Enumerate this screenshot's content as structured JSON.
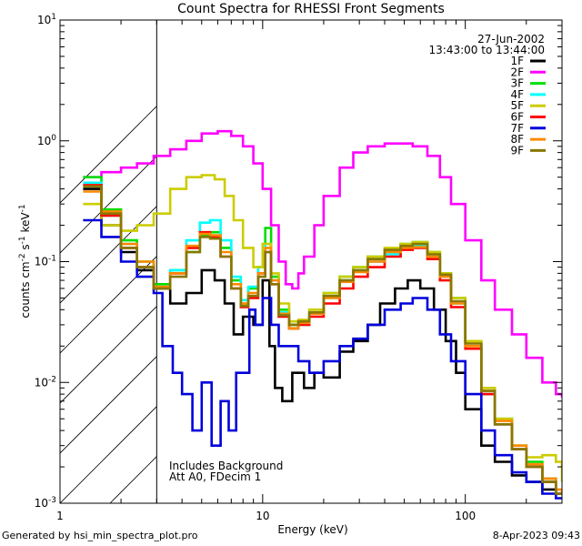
{
  "chart_data": {
    "type": "line",
    "title": "Count Spectra for RHESSI Front Segments",
    "xlabel": "Energy (keV)",
    "ylabel": "counts cm-2 s-1 keV-1",
    "xscale": "log",
    "yscale": "log",
    "xlim": [
      1,
      300
    ],
    "ylim": [
      0.001,
      10
    ],
    "x_ticks": [
      {
        "value": 1,
        "label": "1"
      },
      {
        "value": 10,
        "label": "10"
      },
      {
        "value": 100,
        "label": "100"
      }
    ],
    "y_ticks": [
      {
        "value": 0.001,
        "base": "10",
        "exp": "-3"
      },
      {
        "value": 0.01,
        "base": "10",
        "exp": "-2"
      },
      {
        "value": 0.1,
        "base": "10",
        "exp": "-1"
      },
      {
        "value": 1,
        "base": "10",
        "exp": "0"
      },
      {
        "value": 10,
        "base": "10",
        "exp": "1"
      }
    ],
    "hatched_region_kev": [
      1,
      3
    ],
    "date": "27-Jun-2002",
    "time_range": "13:43:00 to 13:44:00",
    "annotation_lines": [
      "Includes Background",
      "Att A0, FDecim 1"
    ],
    "series": [
      {
        "name": "1F",
        "color": "#000000",
        "x": [
          1.3,
          1.6,
          2.0,
          2.4,
          2.9,
          3.5,
          4.2,
          5.0,
          5.8,
          6.5,
          7.2,
          8.0,
          9.0,
          10.0,
          10.8,
          11.5,
          12.5,
          14.0,
          16.0,
          18.0,
          20.0,
          24.0,
          28.0,
          33.0,
          38.0,
          45.0,
          52.0,
          60.0,
          70.0,
          80.0,
          90.0,
          100.0,
          120.0,
          140.0,
          170.0,
          200.0,
          240.0,
          280.0,
          300.0
        ],
        "y": [
          0.4,
          0.2,
          0.12,
          0.085,
          0.06,
          0.045,
          0.055,
          0.085,
          0.07,
          0.045,
          0.025,
          0.035,
          0.03,
          0.07,
          0.02,
          0.009,
          0.007,
          0.012,
          0.009,
          0.012,
          0.011,
          0.018,
          0.022,
          0.03,
          0.045,
          0.06,
          0.07,
          0.06,
          0.04,
          0.022,
          0.012,
          0.006,
          0.003,
          0.0022,
          0.0017,
          0.0015,
          0.0013,
          0.0012,
          0.0012
        ]
      },
      {
        "name": "2F",
        "color": "#ff00ff",
        "x": [
          1.3,
          1.6,
          2.0,
          2.4,
          2.9,
          3.5,
          4.2,
          5.0,
          6.0,
          7.0,
          8.0,
          9.0,
          10.0,
          11.0,
          12.0,
          13.0,
          14.0,
          15.0,
          16.0,
          18.0,
          20.0,
          24.0,
          28.0,
          33.0,
          40.0,
          48.0,
          55.0,
          65.0,
          75.0,
          85.0,
          100.0,
          120.0,
          140.0,
          170.0,
          200.0,
          240.0,
          280.0,
          300.0
        ],
        "y": [
          0.5,
          0.55,
          0.6,
          0.65,
          0.75,
          0.85,
          1.0,
          1.15,
          1.2,
          1.1,
          0.9,
          0.65,
          0.4,
          0.2,
          0.1,
          0.065,
          0.06,
          0.08,
          0.11,
          0.2,
          0.35,
          0.6,
          0.8,
          0.9,
          0.95,
          0.95,
          0.9,
          0.75,
          0.5,
          0.3,
          0.15,
          0.07,
          0.04,
          0.025,
          0.016,
          0.01,
          0.008,
          0.0075
        ]
      },
      {
        "name": "3F",
        "color": "#00dd00",
        "x": [
          1.3,
          1.6,
          2.0,
          2.4,
          2.9,
          3.5,
          4.2,
          4.9,
          5.5,
          6.2,
          7.0,
          7.8,
          8.5,
          9.5,
          10.3,
          11.0,
          12.0,
          13.5,
          15.0,
          17.0,
          20.0,
          24.0,
          28.0,
          33.0,
          40.0,
          48.0,
          55.0,
          65.0,
          75.0,
          85.0,
          100.0,
          120.0,
          140.0,
          170.0,
          200.0,
          240.0,
          280.0,
          300.0
        ],
        "y": [
          0.5,
          0.27,
          0.15,
          0.1,
          0.065,
          0.085,
          0.12,
          0.165,
          0.175,
          0.13,
          0.07,
          0.045,
          0.06,
          0.09,
          0.19,
          0.075,
          0.04,
          0.03,
          0.032,
          0.04,
          0.055,
          0.075,
          0.09,
          0.11,
          0.125,
          0.14,
          0.145,
          0.12,
          0.08,
          0.05,
          0.022,
          0.009,
          0.005,
          0.003,
          0.0022,
          0.0016,
          0.0012,
          0.0012
        ]
      },
      {
        "name": "4F",
        "color": "#00ffff",
        "x": [
          1.3,
          1.6,
          2.0,
          2.4,
          2.9,
          3.5,
          4.2,
          4.9,
          5.5,
          6.2,
          7.0,
          7.8,
          8.5,
          9.5,
          10.3,
          11.0,
          12.0,
          13.5,
          15.0,
          17.0,
          20.0,
          24.0,
          28.0,
          33.0,
          40.0,
          48.0,
          55.0,
          65.0,
          75.0,
          85.0,
          100.0,
          120.0,
          140.0,
          170.0,
          200.0,
          240.0,
          280.0,
          300.0
        ],
        "y": [
          0.45,
          0.24,
          0.14,
          0.09,
          0.06,
          0.085,
          0.15,
          0.21,
          0.22,
          0.15,
          0.075,
          0.048,
          0.062,
          0.09,
          0.14,
          0.07,
          0.038,
          0.028,
          0.03,
          0.038,
          0.05,
          0.07,
          0.085,
          0.1,
          0.115,
          0.13,
          0.135,
          0.11,
          0.075,
          0.045,
          0.02,
          0.008,
          0.0045,
          0.0028,
          0.002,
          0.0015,
          0.0012,
          0.0012
        ]
      },
      {
        "name": "5F",
        "color": "#cccc00",
        "x": [
          1.3,
          1.6,
          2.0,
          2.4,
          2.9,
          3.5,
          4.2,
          5.0,
          5.8,
          6.5,
          7.2,
          8.0,
          9.0,
          10.0,
          11.0,
          12.0,
          13.5,
          15.0,
          17.0,
          20.0,
          24.0,
          28.0,
          33.0,
          40.0,
          48.0,
          55.0,
          65.0,
          75.0,
          85.0,
          100.0,
          120.0,
          140.0,
          170.0,
          200.0,
          240.0,
          280.0,
          300.0
        ],
        "y": [
          0.3,
          0.2,
          0.18,
          0.2,
          0.25,
          0.4,
          0.5,
          0.52,
          0.48,
          0.35,
          0.22,
          0.13,
          0.09,
          0.14,
          0.08,
          0.045,
          0.032,
          0.033,
          0.04,
          0.055,
          0.075,
          0.09,
          0.11,
          0.13,
          0.14,
          0.145,
          0.12,
          0.08,
          0.05,
          0.022,
          0.009,
          0.005,
          0.003,
          0.0024,
          0.0025,
          0.0022,
          0.0015
        ]
      },
      {
        "name": "6F",
        "color": "#ff0000",
        "x": [
          1.3,
          1.6,
          2.0,
          2.4,
          2.9,
          3.5,
          4.2,
          4.9,
          5.5,
          6.2,
          7.0,
          7.8,
          8.5,
          9.5,
          10.3,
          11.0,
          12.0,
          13.5,
          15.0,
          17.0,
          20.0,
          24.0,
          28.0,
          33.0,
          40.0,
          48.0,
          55.0,
          65.0,
          75.0,
          85.0,
          100.0,
          120.0,
          140.0,
          170.0,
          200.0,
          240.0,
          280.0,
          300.0
        ],
        "y": [
          0.43,
          0.24,
          0.13,
          0.09,
          0.06,
          0.08,
          0.13,
          0.175,
          0.16,
          0.11,
          0.06,
          0.042,
          0.05,
          0.08,
          0.12,
          0.065,
          0.035,
          0.028,
          0.03,
          0.035,
          0.045,
          0.06,
          0.075,
          0.09,
          0.11,
          0.125,
          0.13,
          0.105,
          0.07,
          0.042,
          0.019,
          0.008,
          0.0045,
          0.0028,
          0.002,
          0.0015,
          0.0012,
          0.0012
        ]
      },
      {
        "name": "7F",
        "color": "#0000dd",
        "x": [
          1.3,
          1.6,
          2.0,
          2.4,
          2.9,
          3.2,
          3.6,
          4.0,
          4.5,
          5.0,
          5.6,
          6.2,
          6.8,
          7.4,
          8.0,
          8.6,
          9.2,
          10.0,
          11.0,
          12.0,
          13.5,
          15.0,
          17.0,
          20.0,
          24.0,
          28.0,
          33.0,
          40.0,
          48.0,
          55.0,
          65.0,
          75.0,
          85.0,
          100.0,
          120.0,
          140.0,
          170.0,
          200.0,
          240.0,
          280.0,
          300.0
        ],
        "y": [
          0.22,
          0.16,
          0.1,
          0.075,
          0.055,
          0.02,
          0.012,
          0.008,
          0.004,
          0.01,
          0.003,
          0.007,
          0.004,
          0.012,
          0.012,
          0.04,
          0.03,
          0.05,
          0.03,
          0.02,
          0.02,
          0.015,
          0.012,
          0.015,
          0.02,
          0.023,
          0.03,
          0.04,
          0.045,
          0.05,
          0.04,
          0.025,
          0.015,
          0.008,
          0.004,
          0.0025,
          0.0018,
          0.0015,
          0.0012,
          0.0011,
          0.0011
        ]
      },
      {
        "name": "8F",
        "color": "#ff8800",
        "x": [
          1.3,
          1.6,
          2.0,
          2.4,
          2.9,
          3.5,
          4.2,
          4.9,
          5.5,
          6.2,
          7.0,
          7.8,
          8.5,
          9.5,
          10.3,
          11.0,
          12.0,
          13.5,
          15.0,
          17.0,
          20.0,
          24.0,
          28.0,
          33.0,
          40.0,
          48.0,
          55.0,
          65.0,
          75.0,
          85.0,
          100.0,
          120.0,
          140.0,
          170.0,
          200.0,
          240.0,
          280.0,
          300.0
        ],
        "y": [
          0.38,
          0.26,
          0.14,
          0.1,
          0.062,
          0.08,
          0.135,
          0.17,
          0.165,
          0.12,
          0.065,
          0.045,
          0.055,
          0.08,
          0.13,
          0.07,
          0.037,
          0.028,
          0.031,
          0.037,
          0.05,
          0.068,
          0.082,
          0.1,
          0.12,
          0.13,
          0.132,
          0.11,
          0.075,
          0.045,
          0.02,
          0.0085,
          0.0048,
          0.003,
          0.0021,
          0.0016,
          0.0013,
          0.0012
        ]
      },
      {
        "name": "9F",
        "color": "#887700",
        "x": [
          1.3,
          1.6,
          2.0,
          2.4,
          2.9,
          3.5,
          4.2,
          4.9,
          5.5,
          6.2,
          7.0,
          7.8,
          8.5,
          9.5,
          10.3,
          11.0,
          12.0,
          13.5,
          15.0,
          17.0,
          20.0,
          24.0,
          28.0,
          33.0,
          40.0,
          48.0,
          55.0,
          65.0,
          75.0,
          85.0,
          100.0,
          120.0,
          140.0,
          170.0,
          200.0,
          240.0,
          280.0,
          300.0
        ],
        "y": [
          0.42,
          0.25,
          0.13,
          0.09,
          0.06,
          0.075,
          0.12,
          0.16,
          0.155,
          0.11,
          0.06,
          0.043,
          0.052,
          0.075,
          0.12,
          0.065,
          0.036,
          0.03,
          0.032,
          0.038,
          0.052,
          0.07,
          0.085,
          0.105,
          0.125,
          0.135,
          0.14,
          0.115,
          0.078,
          0.047,
          0.021,
          0.0085,
          0.0045,
          0.0028,
          0.002,
          0.0015,
          0.0012,
          0.0012
        ]
      }
    ]
  },
  "footer": {
    "left": "Generated by hsi_min_spectra_plot.pro",
    "right": "8-Apr-2023 09:43"
  }
}
